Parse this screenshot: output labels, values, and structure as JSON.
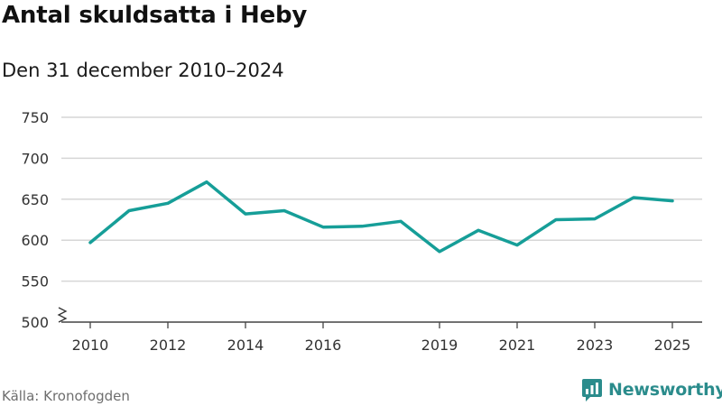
{
  "title": "Antal skuldsatta i Heby",
  "subtitle": "Den 31 december 2010–2024",
  "source": "Källa: Kronofogden",
  "brand": {
    "name": "Newsworthy",
    "icon": "newsworthy-logo-icon",
    "color": "#2b8c8c"
  },
  "chart_data": {
    "type": "line",
    "title": "Antal skuldsatta i Heby",
    "subtitle": "Den 31 december 2010–2024",
    "xlabel": "",
    "ylabel": "",
    "ylim": [
      500,
      750
    ],
    "yticks": [
      500,
      550,
      600,
      650,
      700,
      750
    ],
    "xticks": [
      "2010",
      "2012",
      "2014",
      "2016",
      "2019",
      "2021",
      "2023",
      "2025"
    ],
    "axis_break": true,
    "grid": true,
    "line_color": "#169e98",
    "series": [
      {
        "name": "Antal skuldsatta",
        "x": [
          2010,
          2011,
          2012,
          2013,
          2014,
          2015,
          2016,
          2017,
          2018,
          2019,
          2020,
          2021,
          2022,
          2023,
          2024,
          2025
        ],
        "values": [
          597,
          636,
          645,
          671,
          632,
          636,
          616,
          617,
          623,
          586,
          612,
          594,
          625,
          626,
          652,
          648
        ]
      }
    ]
  }
}
